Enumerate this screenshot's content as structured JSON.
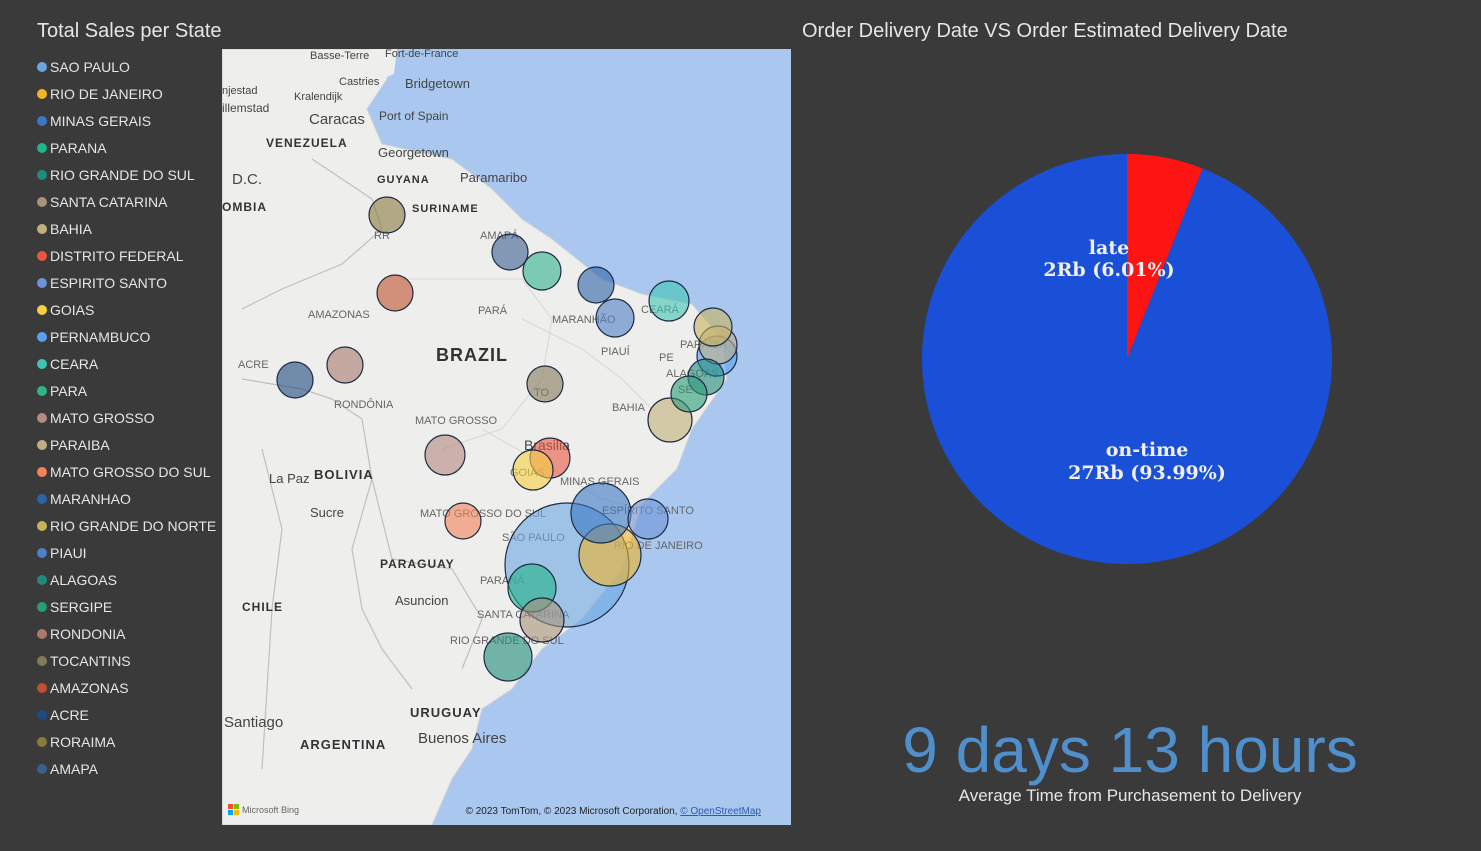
{
  "map_visual": {
    "title": "Total Sales per State",
    "legend": [
      {
        "label": "SAO PAULO",
        "color": "#6ba6e3"
      },
      {
        "label": "RIO DE JANEIRO",
        "color": "#f0b429"
      },
      {
        "label": "MINAS GERAIS",
        "color": "#3b78c4"
      },
      {
        "label": "PARANA",
        "color": "#21b38a"
      },
      {
        "label": "RIO GRANDE DO SUL",
        "color": "#1e8c7a"
      },
      {
        "label": "SANTA CATARINA",
        "color": "#a89278"
      },
      {
        "label": "BAHIA",
        "color": "#c2b07a"
      },
      {
        "label": "DISTRITO FEDERAL",
        "color": "#e9573f"
      },
      {
        "label": "ESPIRITO SANTO",
        "color": "#6f93d6"
      },
      {
        "label": "GOIAS",
        "color": "#f5d142"
      },
      {
        "label": "PERNAMBUCO",
        "color": "#5aa0f0"
      },
      {
        "label": "CEARA",
        "color": "#3fc4b4"
      },
      {
        "label": "PARA",
        "color": "#2fb38a"
      },
      {
        "label": "MATO GROSSO",
        "color": "#b28a80"
      },
      {
        "label": "PARAIBA",
        "color": "#bfae86"
      },
      {
        "label": "MATO GROSSO DO SUL",
        "color": "#f2825a"
      },
      {
        "label": "MARANHAO",
        "color": "#2e63a8"
      },
      {
        "label": "RIO GRANDE DO NORTE",
        "color": "#c9b25c"
      },
      {
        "label": "PIAUI",
        "color": "#4f7fc6"
      },
      {
        "label": "ALAGOAS",
        "color": "#1f8a7c"
      },
      {
        "label": "SERGIPE",
        "color": "#2a9c76"
      },
      {
        "label": "RONDONIA",
        "color": "#a87a6c"
      },
      {
        "label": "TOCANTINS",
        "color": "#837a5a"
      },
      {
        "label": "AMAZONAS",
        "color": "#c0502f"
      },
      {
        "label": "ACRE",
        "color": "#1e4a80"
      },
      {
        "label": "RORAIMA",
        "color": "#8a7a3e"
      },
      {
        "label": "AMAPA",
        "color": "#3a5f90"
      }
    ],
    "map_labels": {
      "countries": [
        "VENEZUELA",
        "GUYANA",
        "SURINAME",
        "BRAZIL",
        "BOLIVIA",
        "PARAGUAY",
        "CHILE",
        "URUGUAY",
        "ARGENTINA",
        "OMBIA"
      ],
      "cities": [
        "Basse-Terre",
        "Fort-de-France",
        "Castries",
        "Bridgetown",
        "Kralendijk",
        "Caracas",
        "Port of Spain",
        "Georgetown",
        "Paramaribo",
        "D.C.",
        "La Paz",
        "Sucre",
        "Asuncion",
        "Santiago",
        "Buenos Aires",
        "Brasilia",
        "njestad",
        "illemstad"
      ],
      "states": [
        "AMAPÁ",
        "RR",
        "AMAZONAS",
        "PARÁ",
        "MARANHÃO",
        "CEARÁ",
        "PIAUÍ",
        "PE",
        "PARAÍBA",
        "ALAGOAS",
        "SE",
        "ACRE",
        "RONDÔNIA",
        "TO",
        "BAHIA",
        "MATO GROSSO",
        "GOIÁS",
        "MINAS GERAIS",
        "ESPÍRITO SANTO",
        "MATO GROSSO DO SUL",
        "SÃO PAULO",
        "RIO DE JANEIRO",
        "PARANÁ",
        "SANTA CATARINA",
        "RIO GRANDE DO SUL"
      ]
    },
    "attribution": "© 2023 TomTom, © 2023 Microsoft Corporation,",
    "attribution_link": "© OpenStreetMap",
    "bing_label": "Microsoft Bing"
  },
  "pie_visual": {
    "title": "Order Delivery Date VS Order Estimated Delivery Date",
    "chart_data": {
      "type": "pie",
      "slices": [
        {
          "name": "late",
          "value_label": "2Rb (6.01%)",
          "percent": 6.01,
          "color": "#ff1414"
        },
        {
          "name": "on-time",
          "value_label": "27Rb (93.99%)",
          "percent": 93.99,
          "color": "#1a4fd8"
        }
      ]
    }
  },
  "kpi": {
    "value": "9 days 13 hours",
    "caption": "Average Time from Purchasement to Delivery"
  }
}
